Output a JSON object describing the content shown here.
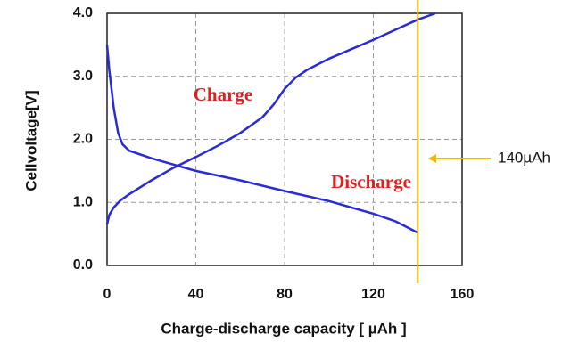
{
  "chart_data": {
    "type": "line",
    "xlabel": "Charge-discharge capacity [ µAh ]",
    "ylabel": "Cellvoltage[V]",
    "xlim": [
      0,
      160
    ],
    "xticks": [
      0,
      40,
      80,
      120,
      160
    ],
    "ylim": [
      0,
      4
    ],
    "yticks": [
      {
        "value": 0,
        "label": "0.0"
      },
      {
        "value": 1,
        "label": "1.0"
      },
      {
        "value": 2,
        "label": "2.0"
      },
      {
        "value": 3,
        "label": "3.0"
      },
      {
        "value": 4,
        "label": "4.0"
      }
    ],
    "grid": true,
    "series": [
      {
        "name": "Charge",
        "color": "#2a2ad6",
        "x": [
          0,
          1,
          3,
          6,
          10,
          20,
          30,
          40,
          50,
          60,
          70,
          75,
          80,
          85,
          90,
          100,
          110,
          120,
          130,
          140,
          148
        ],
        "values": [
          0.65,
          0.8,
          0.92,
          1.03,
          1.13,
          1.35,
          1.55,
          1.72,
          1.9,
          2.1,
          2.35,
          2.55,
          2.8,
          2.98,
          3.1,
          3.28,
          3.43,
          3.58,
          3.74,
          3.9,
          4.0
        ]
      },
      {
        "name": "Discharge",
        "color": "#2a2ad6",
        "x": [
          0,
          1,
          3,
          5,
          7,
          10,
          20,
          30,
          40,
          60,
          80,
          100,
          120,
          130,
          140
        ],
        "values": [
          3.5,
          3.1,
          2.5,
          2.1,
          1.92,
          1.82,
          1.7,
          1.6,
          1.5,
          1.35,
          1.18,
          1.02,
          0.82,
          0.7,
          0.52
        ]
      }
    ],
    "marker_x": 140,
    "marker_label": "140µAh",
    "marker_color": "#f5b400"
  }
}
